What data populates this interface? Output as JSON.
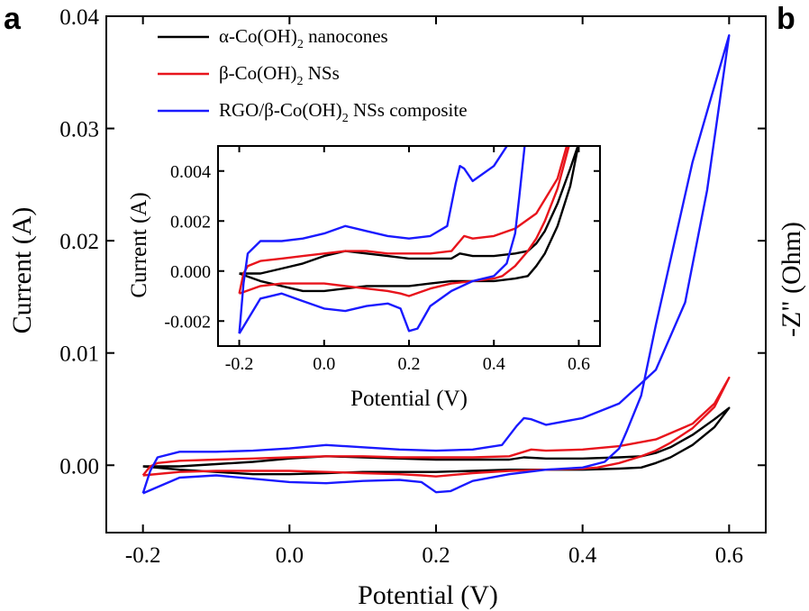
{
  "panels": {
    "a": "a",
    "b": "b"
  },
  "right_axis_label": "-Z\" (Ohm)",
  "chart_data": [
    {
      "type": "line",
      "title": "",
      "xlabel": "Potential (V)",
      "ylabel": "Current (A)",
      "xlim": [
        -0.25,
        0.65
      ],
      "ylim": [
        -0.006,
        0.04
      ],
      "xticks": [
        "-0.2",
        "0.0",
        "0.2",
        "0.4",
        "0.6"
      ],
      "xtick_values": [
        -0.2,
        0.0,
        0.2,
        0.4,
        0.6
      ],
      "yticks": [
        "0.00",
        "0.01",
        "0.02",
        "0.03",
        "0.04"
      ],
      "ytick_values": [
        0.0,
        0.01,
        0.02,
        0.03,
        0.04
      ],
      "grid": false,
      "legend_position": "top-left",
      "series": [
        {
          "name": "α-Co(OH)2 nanocones",
          "legend": {
            "pre": "α-Co(OH)",
            "sub": "2",
            "post": " nanocones"
          },
          "color": "#000000",
          "points": [
            [
              -0.2,
              -0.0001
            ],
            [
              -0.15,
              -0.0001
            ],
            [
              -0.1,
              0.0001
            ],
            [
              -0.05,
              0.0003
            ],
            [
              0.0,
              0.0006
            ],
            [
              0.05,
              0.0008
            ],
            [
              0.1,
              0.0007
            ],
            [
              0.15,
              0.0006
            ],
            [
              0.2,
              0.0005
            ],
            [
              0.25,
              0.0005
            ],
            [
              0.3,
              0.0005
            ],
            [
              0.32,
              0.0007
            ],
            [
              0.35,
              0.0006
            ],
            [
              0.4,
              0.0006
            ],
            [
              0.45,
              0.0007
            ],
            [
              0.48,
              0.0008
            ],
            [
              0.5,
              0.0011
            ],
            [
              0.52,
              0.0016
            ],
            [
              0.55,
              0.0027
            ],
            [
              0.58,
              0.0041
            ],
            [
              0.6,
              0.0051
            ],
            [
              0.58,
              0.0034
            ],
            [
              0.55,
              0.0018
            ],
            [
              0.52,
              0.0007
            ],
            [
              0.5,
              0.0002
            ],
            [
              0.48,
              -0.0002
            ],
            [
              0.45,
              -0.0003
            ],
            [
              0.4,
              -0.0004
            ],
            [
              0.35,
              -0.0004
            ],
            [
              0.3,
              -0.0004
            ],
            [
              0.25,
              -0.0005
            ],
            [
              0.2,
              -0.0006
            ],
            [
              0.15,
              -0.0006
            ],
            [
              0.1,
              -0.0006
            ],
            [
              0.05,
              -0.0007
            ],
            [
              0.0,
              -0.0008
            ],
            [
              -0.05,
              -0.0008
            ],
            [
              -0.1,
              -0.0006
            ],
            [
              -0.15,
              -0.0004
            ],
            [
              -0.2,
              -0.0001
            ]
          ]
        },
        {
          "name": "β-Co(OH)2 NSs",
          "legend": {
            "pre": "β-Co(OH)",
            "sub": "2",
            "post": " NSs"
          },
          "color": "#e8141c",
          "points": [
            [
              -0.2,
              -0.0009
            ],
            [
              -0.19,
              -0.0001
            ],
            [
              -0.18,
              0.0002
            ],
            [
              -0.15,
              0.0004
            ],
            [
              -0.1,
              0.0005
            ],
            [
              -0.05,
              0.0006
            ],
            [
              0.0,
              0.0007
            ],
            [
              0.05,
              0.0008
            ],
            [
              0.1,
              0.0008
            ],
            [
              0.15,
              0.0007
            ],
            [
              0.2,
              0.0007
            ],
            [
              0.25,
              0.0007
            ],
            [
              0.3,
              0.0008
            ],
            [
              0.32,
              0.0012
            ],
            [
              0.33,
              0.0014
            ],
            [
              0.35,
              0.0013
            ],
            [
              0.4,
              0.0014
            ],
            [
              0.45,
              0.0017
            ],
            [
              0.5,
              0.0023
            ],
            [
              0.55,
              0.0037
            ],
            [
              0.58,
              0.0055
            ],
            [
              0.6,
              0.0078
            ],
            [
              0.58,
              0.0052
            ],
            [
              0.55,
              0.0033
            ],
            [
              0.52,
              0.002
            ],
            [
              0.5,
              0.0013
            ],
            [
              0.48,
              0.0008
            ],
            [
              0.45,
              0.0002
            ],
            [
              0.42,
              -0.0002
            ],
            [
              0.4,
              -0.0003
            ],
            [
              0.35,
              -0.0004
            ],
            [
              0.3,
              -0.0005
            ],
            [
              0.25,
              -0.0007
            ],
            [
              0.2,
              -0.001
            ],
            [
              0.18,
              -0.0009
            ],
            [
              0.15,
              -0.0008
            ],
            [
              0.1,
              -0.0007
            ],
            [
              0.05,
              -0.0006
            ],
            [
              0.0,
              -0.0005
            ],
            [
              -0.05,
              -0.0005
            ],
            [
              -0.1,
              -0.0005
            ],
            [
              -0.15,
              -0.0006
            ],
            [
              -0.2,
              -0.0009
            ]
          ]
        },
        {
          "name": "RGO/β-Co(OH)2 NSs composite",
          "legend": {
            "pre": "RGO/β-Co(OH)",
            "sub": "2",
            "post": " NSs composite"
          },
          "color": "#1a1aff",
          "points": [
            [
              -0.2,
              -0.0025
            ],
            [
              -0.19,
              -0.0005
            ],
            [
              -0.18,
              0.0007
            ],
            [
              -0.15,
              0.0012
            ],
            [
              -0.1,
              0.0012
            ],
            [
              -0.05,
              0.0013
            ],
            [
              0.0,
              0.0015
            ],
            [
              0.05,
              0.0018
            ],
            [
              0.1,
              0.0016
            ],
            [
              0.15,
              0.0014
            ],
            [
              0.2,
              0.0013
            ],
            [
              0.25,
              0.0014
            ],
            [
              0.29,
              0.0018
            ],
            [
              0.31,
              0.0035
            ],
            [
              0.32,
              0.0042
            ],
            [
              0.33,
              0.0041
            ],
            [
              0.35,
              0.0036
            ],
            [
              0.4,
              0.0042
            ],
            [
              0.45,
              0.0055
            ],
            [
              0.5,
              0.0085
            ],
            [
              0.54,
              0.0145
            ],
            [
              0.57,
              0.0245
            ],
            [
              0.6,
              0.0383
            ],
            [
              0.55,
              0.027
            ],
            [
              0.5,
              0.0125
            ],
            [
              0.48,
              0.0062
            ],
            [
              0.46,
              0.003
            ],
            [
              0.45,
              0.0015
            ],
            [
              0.43,
              0.0003
            ],
            [
              0.4,
              -0.0002
            ],
            [
              0.35,
              -0.0004
            ],
            [
              0.3,
              -0.0008
            ],
            [
              0.25,
              -0.0014
            ],
            [
              0.22,
              -0.0023
            ],
            [
              0.2,
              -0.0024
            ],
            [
              0.18,
              -0.0015
            ],
            [
              0.15,
              -0.0013
            ],
            [
              0.1,
              -0.0014
            ],
            [
              0.05,
              -0.0016
            ],
            [
              0.0,
              -0.0015
            ],
            [
              -0.05,
              -0.0012
            ],
            [
              -0.1,
              -0.0009
            ],
            [
              -0.15,
              -0.0011
            ],
            [
              -0.2,
              -0.0025
            ]
          ]
        }
      ]
    },
    {
      "type": "line",
      "title": "",
      "xlabel": "Potential (V)",
      "ylabel": "Current (A)",
      "xlim": [
        -0.25,
        0.65
      ],
      "ylim": [
        -0.003,
        0.005
      ],
      "xticks": [
        "-0.2",
        "0.0",
        "0.2",
        "0.4",
        "0.6"
      ],
      "xtick_values": [
        -0.2,
        0.0,
        0.2,
        0.4,
        0.6
      ],
      "yticks": [
        "-0.002",
        "0.000",
        "0.002",
        "0.004"
      ],
      "ytick_values": [
        -0.002,
        0.0,
        0.002,
        0.004
      ],
      "grid": false,
      "series": [
        {
          "series_ref": 0,
          "color": "#000000"
        },
        {
          "series_ref": 1,
          "color": "#e8141c"
        },
        {
          "series_ref": 2,
          "color": "#1a1aff"
        }
      ]
    }
  ]
}
